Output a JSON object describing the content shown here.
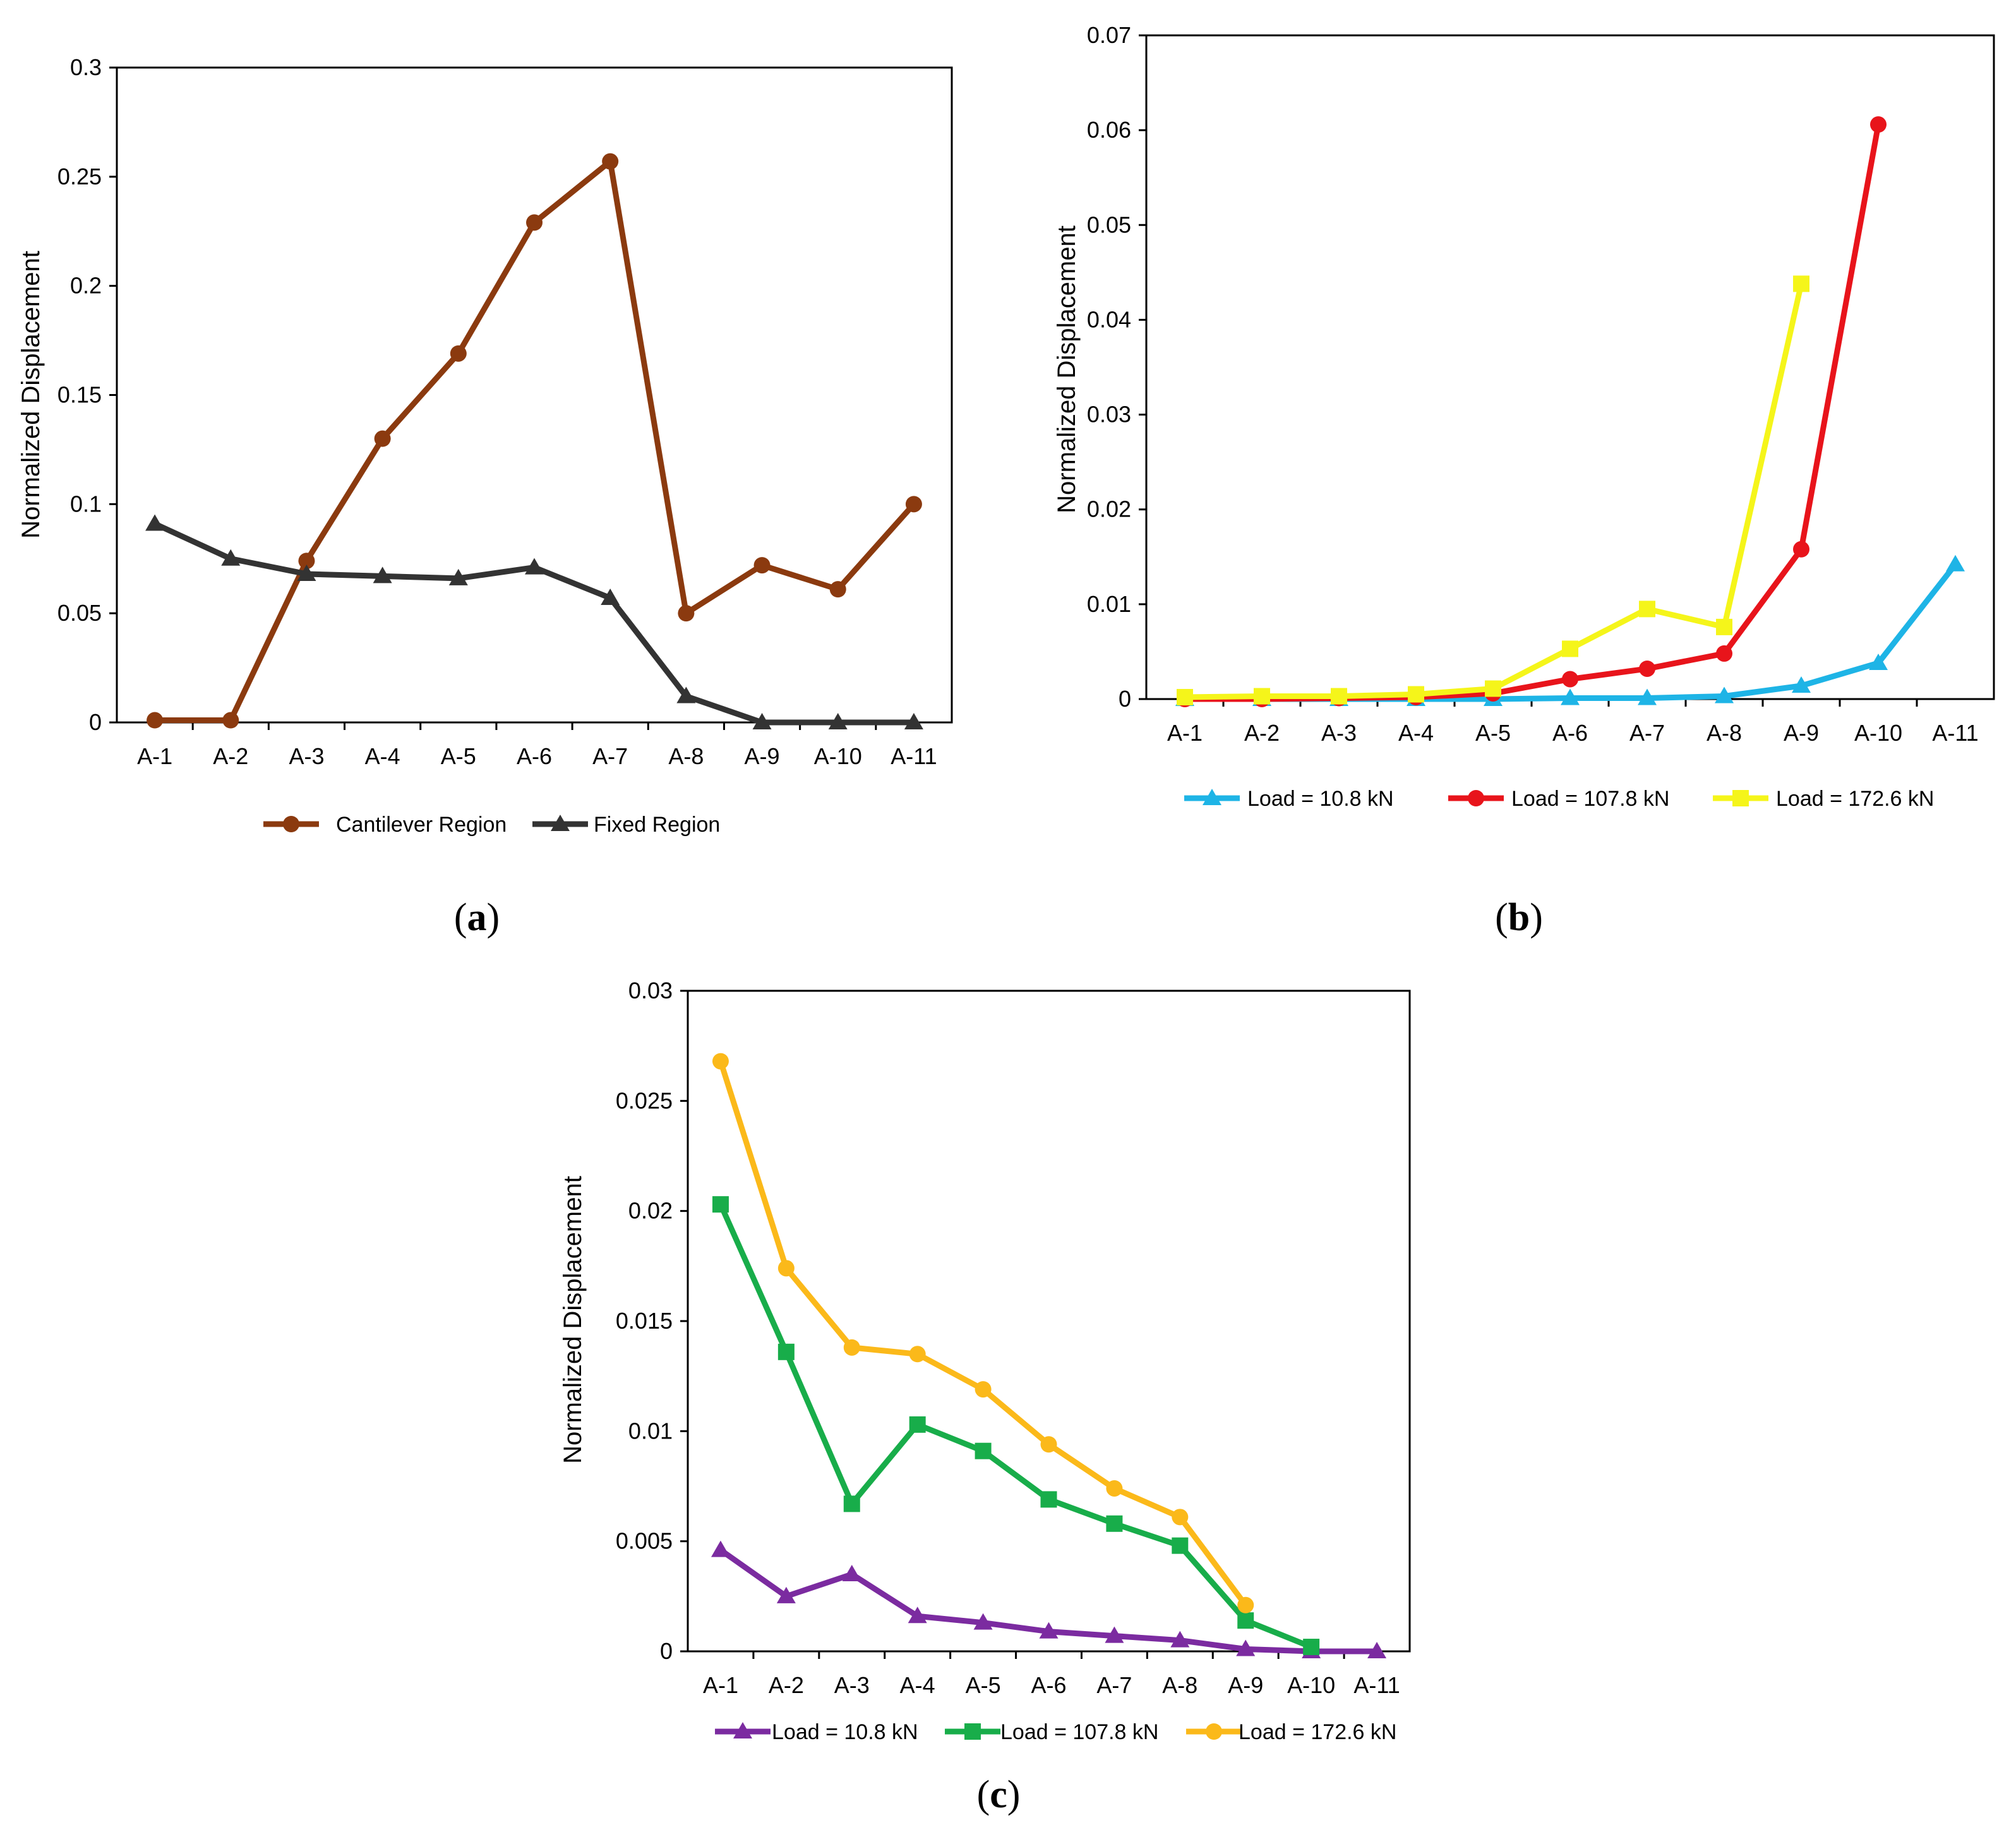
{
  "chart_data": [
    {
      "id": "a",
      "type": "line",
      "caption_letter": "a",
      "categories": [
        "A-1",
        "A-2",
        "A-3",
        "A-4",
        "A-5",
        "A-6",
        "A-7",
        "A-8",
        "A-9",
        "A-10",
        "A-11"
      ],
      "ylabel": "Normalized Displacement",
      "ylim": [
        0,
        0.3
      ],
      "yticks": [
        0,
        0.05,
        0.1,
        0.15,
        0.2,
        0.25,
        0.3
      ],
      "ytick_labels": [
        "0",
        "0.05",
        "0.1",
        "0.15",
        "0.2",
        "0.25",
        "0.3"
      ],
      "legend_position": "bottom",
      "series": [
        {
          "name": "Cantilever Region",
          "color": "#8B3A0F",
          "marker": "circle",
          "values": [
            0.001,
            0.001,
            0.074,
            0.13,
            0.169,
            0.229,
            0.257,
            0.05,
            0.072,
            0.061,
            0.1
          ]
        },
        {
          "name": "Fixed Region",
          "color": "#333333",
          "marker": "triangle",
          "values": [
            0.091,
            0.075,
            0.068,
            0.067,
            0.066,
            0.071,
            0.057,
            0.012,
            0.0,
            0.0,
            0.0
          ]
        }
      ]
    },
    {
      "id": "b",
      "type": "line",
      "caption_letter": "b",
      "categories": [
        "A-1",
        "A-2",
        "A-3",
        "A-4",
        "A-5",
        "A-6",
        "A-7",
        "A-8",
        "A-9",
        "A-10",
        "A-11"
      ],
      "ylabel": "Normalized Displacement",
      "ylim": [
        0,
        0.07
      ],
      "yticks": [
        0,
        0.01,
        0.02,
        0.03,
        0.04,
        0.05,
        0.06,
        0.07
      ],
      "ytick_labels": [
        "0",
        "0.01",
        "0.02",
        "0.03",
        "0.04",
        "0.05",
        "0.06",
        "0.07"
      ],
      "legend_position": "bottom",
      "series": [
        {
          "name": "Load = 10.8 kN",
          "color": "#1EB4E6",
          "marker": "triangle",
          "values": [
            0,
            0,
            0,
            0,
            0,
            0.0001,
            0.0001,
            0.0003,
            0.0014,
            0.0038,
            0.0142
          ]
        },
        {
          "name": "Load = 107.8 kN",
          "color": "#E8141B",
          "marker": "circle",
          "values": [
            0,
            0,
            0.0001,
            0.0002,
            0.0006,
            0.0021,
            0.0032,
            0.0048,
            0.0158,
            0.0606,
            null
          ]
        },
        {
          "name": "Load = 172.6 kN",
          "color": "#F5F51A",
          "marker": "square",
          "values": [
            0.0002,
            0.0003,
            0.0003,
            0.0005,
            0.0011,
            0.0053,
            0.0095,
            0.0076,
            0.0438,
            null,
            null
          ]
        }
      ]
    },
    {
      "id": "c",
      "type": "line",
      "caption_letter": "c",
      "categories": [
        "A-1",
        "A-2",
        "A-3",
        "A-4",
        "A-5",
        "A-6",
        "A-7",
        "A-8",
        "A-9",
        "A-10",
        "A-11"
      ],
      "ylabel": "Normalized Displacement",
      "ylim": [
        0,
        0.03
      ],
      "yticks": [
        0,
        0.005,
        0.01,
        0.015,
        0.02,
        0.025,
        0.03
      ],
      "ytick_labels": [
        "0",
        "0.005",
        "0.01",
        "0.015",
        "0.02",
        "0.025",
        "0.03"
      ],
      "legend_position": "bottom",
      "series": [
        {
          "name": "Load = 10.8 kN",
          "color": "#7B2BA0",
          "marker": "triangle",
          "values": [
            0.0046,
            0.0025,
            0.0035,
            0.0016,
            0.0013,
            0.0009,
            0.0007,
            0.0005,
            0.0001,
            0.0,
            0.0
          ]
        },
        {
          "name": "Load = 107.8 kN",
          "color": "#18AD4A",
          "marker": "square",
          "values": [
            0.0203,
            0.0136,
            0.0067,
            0.0103,
            0.0091,
            0.0069,
            0.0058,
            0.0048,
            0.0014,
            0.0002,
            null
          ]
        },
        {
          "name": "Load = 172.6 kN",
          "color": "#FBB91A",
          "marker": "circle",
          "values": [
            0.0268,
            0.0174,
            0.0138,
            0.0135,
            0.0119,
            0.0094,
            0.0074,
            0.0061,
            0.0021,
            null,
            null
          ]
        }
      ]
    }
  ]
}
